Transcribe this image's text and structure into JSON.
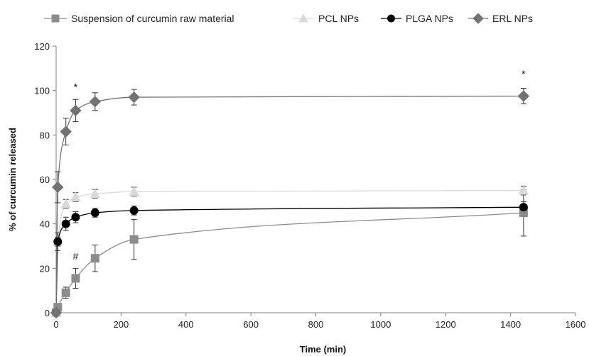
{
  "chart_data": {
    "type": "scatter",
    "title": "",
    "xlabel": "Time (min)",
    "ylabel": "% of curcumin released",
    "xlim": [
      0,
      1600
    ],
    "ylim": [
      0,
      120
    ],
    "x_ticks": [
      0,
      200,
      400,
      600,
      800,
      1000,
      1200,
      1400,
      1600
    ],
    "y_ticks": [
      0,
      20,
      40,
      60,
      80,
      100,
      120
    ],
    "grid": false,
    "legend_position": "top",
    "series": [
      {
        "name": "Suspension of curcumin raw material",
        "marker": "square",
        "color": "#8c8c8c",
        "x": [
          0,
          5,
          30,
          60,
          120,
          240,
          1440
        ],
        "y": [
          0,
          2.5,
          9,
          15.5,
          24.5,
          33,
          45
        ],
        "err": [
          0,
          1,
          2.5,
          4.5,
          6,
          9,
          10.5
        ]
      },
      {
        "name": "PCL NPs",
        "marker": "triangle",
        "color": "#d9d9d9",
        "x": [
          0,
          5,
          30,
          60,
          120,
          240,
          1440
        ],
        "y": [
          0,
          32,
          49,
          52,
          53.5,
          54.5,
          55
        ],
        "err": [
          0,
          2,
          2,
          2,
          2,
          2,
          2
        ]
      },
      {
        "name": "PLGA NPs",
        "marker": "circle",
        "color": "#000000",
        "x": [
          0,
          5,
          30,
          60,
          120,
          240,
          1440
        ],
        "y": [
          0,
          32,
          40,
          43,
          45,
          46,
          47.5
        ],
        "err": [
          0,
          4,
          3,
          2.5,
          2,
          2,
          2.5
        ]
      },
      {
        "name": "ERL NPs",
        "marker": "diamond",
        "color": "#737373",
        "x": [
          0,
          5,
          30,
          60,
          120,
          240,
          1440
        ],
        "y": [
          0,
          56.5,
          81.5,
          91,
          95,
          97,
          97.5
        ],
        "err": [
          0,
          7,
          6,
          5,
          4,
          3.5,
          3.5
        ]
      }
    ],
    "annotations": [
      {
        "text": "*",
        "x": 60,
        "y": 100
      },
      {
        "text": "#",
        "x": 60,
        "y": 24
      },
      {
        "text": "*",
        "x": 1440,
        "y": 106
      }
    ]
  }
}
